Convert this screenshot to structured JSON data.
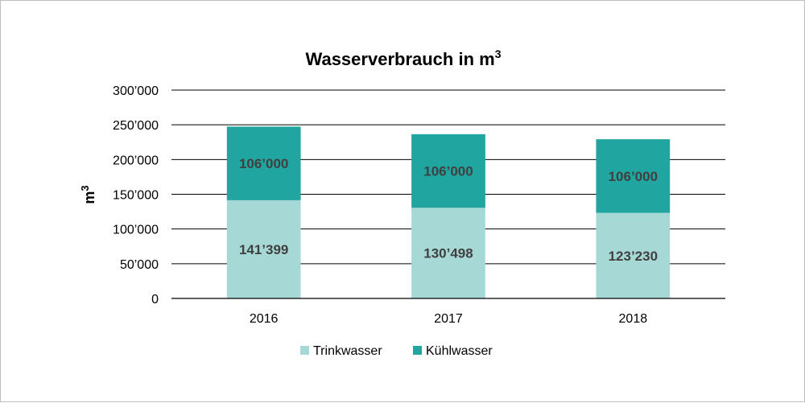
{
  "chart_data": {
    "type": "bar",
    "stacked": true,
    "title": "Wasserverbrauch in m",
    "title_sup": "3",
    "xlabel": "",
    "ylabel": "m",
    "ylabel_sup": "3",
    "categories": [
      "2016",
      "2017",
      "2018"
    ],
    "series": [
      {
        "name": "Trinkwasser",
        "values": [
          141399,
          130498,
          123230
        ],
        "labels": [
          "141’399",
          "130’498",
          "123’230"
        ],
        "color": "#a6d9d6"
      },
      {
        "name": "Kühlwasser",
        "values": [
          106000,
          106000,
          106000
        ],
        "labels": [
          "106’000",
          "106’000",
          "106’000"
        ],
        "color": "#20a5a0"
      }
    ],
    "ylim": [
      0,
      300000
    ],
    "yticks": [
      0,
      50000,
      100000,
      150000,
      200000,
      250000,
      300000
    ],
    "ytick_labels": [
      "0",
      "50’000",
      "100’000",
      "150’000",
      "200’000",
      "250’000",
      "300’000"
    ],
    "grid": true,
    "legend_position": "bottom"
  }
}
